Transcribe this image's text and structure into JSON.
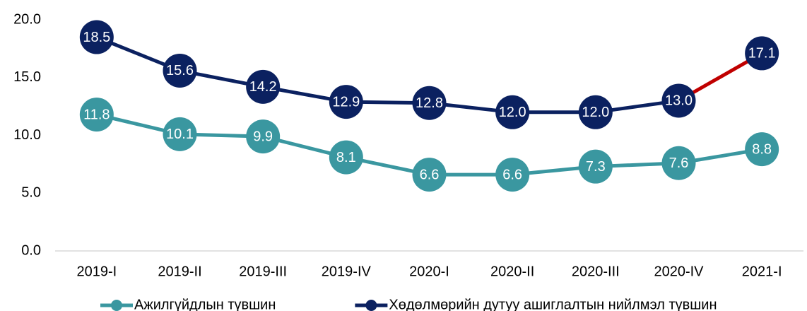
{
  "chart_data": {
    "type": "line",
    "categories": [
      "2019-I",
      "2019-II",
      "2019-III",
      "2019-IV",
      "2020-I",
      "2020-II",
      "2020-III",
      "2020-IV",
      "2021-I"
    ],
    "series": [
      {
        "name": "Ажилгүйдлын түвшин",
        "color": "#3a97a0",
        "values": [
          11.8,
          10.1,
          9.9,
          8.1,
          6.6,
          6.6,
          7.3,
          7.6,
          8.8
        ],
        "value_labels": [
          "11.8",
          "10.1",
          "9.9",
          "8.1",
          "6.6",
          "6.6",
          "7.3",
          "7.6",
          "8.8"
        ]
      },
      {
        "name": "Хөдөлмөрийн дутуу ашиглалтын нийлмэл түвшин",
        "color": "#0b2160",
        "last_segment_color": "#c00000",
        "values": [
          18.5,
          15.6,
          14.2,
          12.9,
          12.8,
          12,
          12,
          13,
          17.1
        ],
        "value_labels": [
          "18.5",
          "15.6",
          "14.2",
          "12.9",
          "12.8",
          "12.0",
          "12.0",
          "13.0",
          "17.1"
        ]
      }
    ],
    "ylim": [
      0,
      20
    ],
    "yticks": [
      {
        "value": 0,
        "label": "0.0"
      },
      {
        "value": 5,
        "label": "5.0"
      },
      {
        "value": 10,
        "label": "10.0"
      },
      {
        "value": 15,
        "label": "15.0"
      },
      {
        "value": 20,
        "label": "20.0"
      }
    ],
    "grid": false,
    "legend": "bottom"
  }
}
